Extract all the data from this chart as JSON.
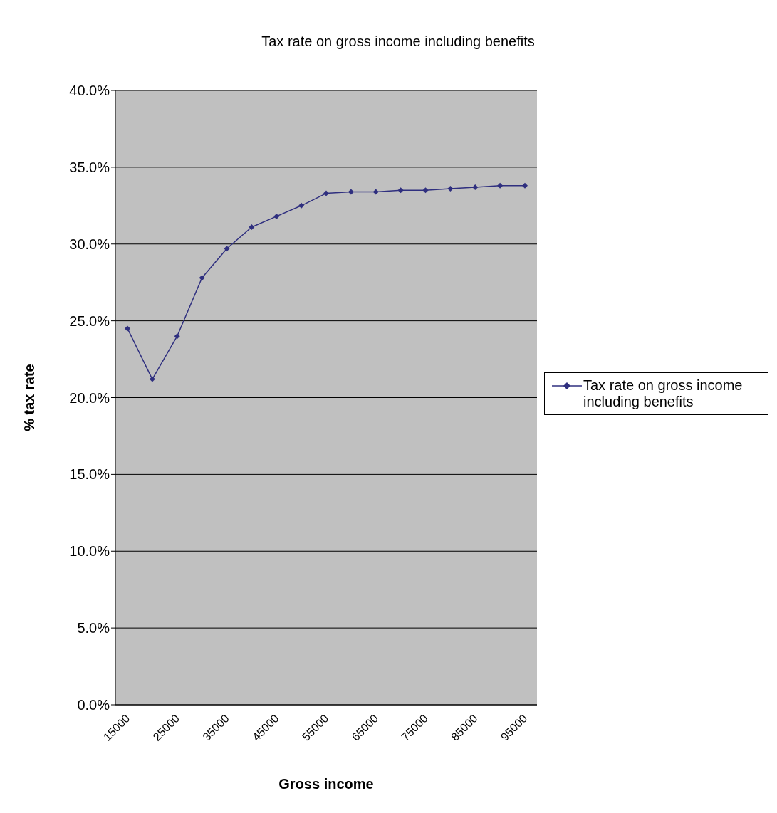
{
  "chart_data": {
    "type": "line",
    "title": "Tax rate on gross income including benefits",
    "xlabel": "Gross income",
    "ylabel": "% tax rate",
    "categories": [
      "15000",
      null,
      "25000",
      null,
      "35000",
      null,
      "45000",
      null,
      "55000",
      null,
      "65000",
      null,
      "75000",
      null,
      "85000",
      null,
      "95000"
    ],
    "series": [
      {
        "name": "Tax rate on gross income including benefits",
        "color": "#2f2f7f",
        "values": [
          24.5,
          21.2,
          24.0,
          27.8,
          29.7,
          31.1,
          31.8,
          32.5,
          33.3,
          33.4,
          33.4,
          33.5,
          33.5,
          33.6,
          33.7,
          33.8,
          33.8
        ]
      }
    ],
    "ylim": [
      0,
      40
    ],
    "yticks": [
      {
        "value": 0,
        "label": "0.0%"
      },
      {
        "value": 5,
        "label": "5.0%"
      },
      {
        "value": 10,
        "label": "10.0%"
      },
      {
        "value": 15,
        "label": "15.0%"
      },
      {
        "value": 20,
        "label": "20.0%"
      },
      {
        "value": 25,
        "label": "25.0%"
      },
      {
        "value": 30,
        "label": "30.0%"
      },
      {
        "value": 35,
        "label": "35.0%"
      },
      {
        "value": 40,
        "label": "40.0%"
      }
    ],
    "grid": "y",
    "legend": "right",
    "marker": "diamond",
    "line_style": "solid"
  }
}
